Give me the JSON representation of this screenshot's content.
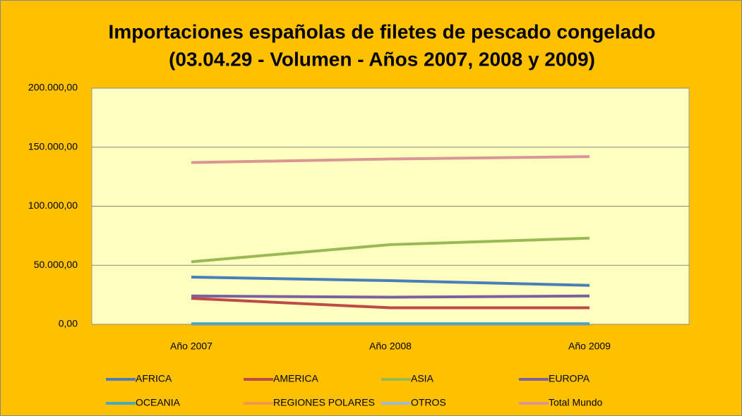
{
  "chart_data": {
    "type": "line",
    "title": "Importaciones españolas  de filetes de pescado congelado",
    "subtitle": "(03.04.29 - Volumen - Años 2007, 2008 y 2009)",
    "categories": [
      "Año 2007",
      "Año 2008",
      "Año 2009"
    ],
    "series": [
      {
        "name": "AFRICA",
        "color": "#4a7ebb",
        "values": [
          40000,
          37000,
          33000
        ]
      },
      {
        "name": "AMERICA",
        "color": "#be4b48",
        "values": [
          22000,
          14000,
          14000
        ]
      },
      {
        "name": "ASIA",
        "color": "#98b954",
        "values": [
          53000,
          67500,
          73000
        ]
      },
      {
        "name": "EUROPA",
        "color": "#7d60a0",
        "values": [
          24000,
          23000,
          24000
        ]
      },
      {
        "name": "OCEANIA",
        "color": "#46aac5",
        "values": [
          500,
          500,
          500
        ]
      },
      {
        "name": "REGIONES  POLARES",
        "color": "#f79646",
        "values": [
          0,
          0,
          0
        ]
      },
      {
        "name": "OTROS",
        "color": "#9bbbd9",
        "values": [
          0,
          0,
          0
        ]
      },
      {
        "name": "Total Mundo",
        "color": "#d99694",
        "values": [
          137000,
          140000,
          142000
        ]
      }
    ],
    "ylim": [
      0,
      200000
    ],
    "yticks": [
      {
        "value": 0,
        "label": "0,00"
      },
      {
        "value": 50000,
        "label": "50.000,00"
      },
      {
        "value": 100000,
        "label": "100.000,00"
      },
      {
        "value": 150000,
        "label": "150.000,00"
      },
      {
        "value": 200000,
        "label": "200.000,00"
      }
    ],
    "grid": true,
    "legend": "bottom"
  }
}
